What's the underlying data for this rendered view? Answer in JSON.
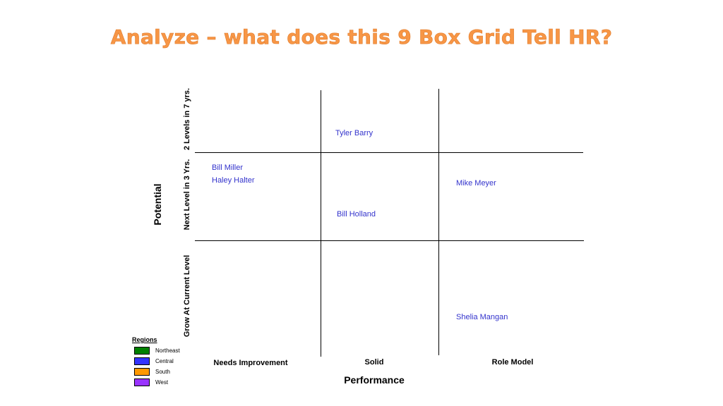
{
  "title": "Analyze – what does this 9 Box Grid Tell HR?",
  "axes": {
    "y_title": "Potential",
    "y_levels": [
      "2 Levels in 7 yrs.",
      "Next Level in 3 Yrs.",
      "Grow At Current Level"
    ],
    "x_title": "Performance",
    "x_levels": [
      "Needs Improvement",
      "Solid",
      "Role Model"
    ]
  },
  "employees": [
    {
      "name": "Tyler Barry",
      "potential": "2 Levels in 7 yrs.",
      "performance": "Solid"
    },
    {
      "name": "Bill Miller",
      "potential": "Next Level in 3 Yrs.",
      "performance": "Needs Improvement"
    },
    {
      "name": "Haley Halter",
      "potential": "Next Level in 3 Yrs.",
      "performance": "Needs Improvement"
    },
    {
      "name": "Mike Meyer",
      "potential": "Next Level in 3 Yrs.",
      "performance": "Role Model"
    },
    {
      "name": "Bill Holland",
      "potential": "Next Level in 3 Yrs.",
      "performance": "Solid"
    },
    {
      "name": "Shelia Mangan",
      "potential": "Grow At Current Level",
      "performance": "Role Model"
    }
  ],
  "legend": {
    "title": "Regions",
    "items": [
      {
        "label": "Northeast",
        "color": "#008000"
      },
      {
        "label": "Central",
        "color": "#3333ff"
      },
      {
        "label": "South",
        "color": "#ff9900"
      },
      {
        "label": "West",
        "color": "#9933ff"
      }
    ]
  }
}
